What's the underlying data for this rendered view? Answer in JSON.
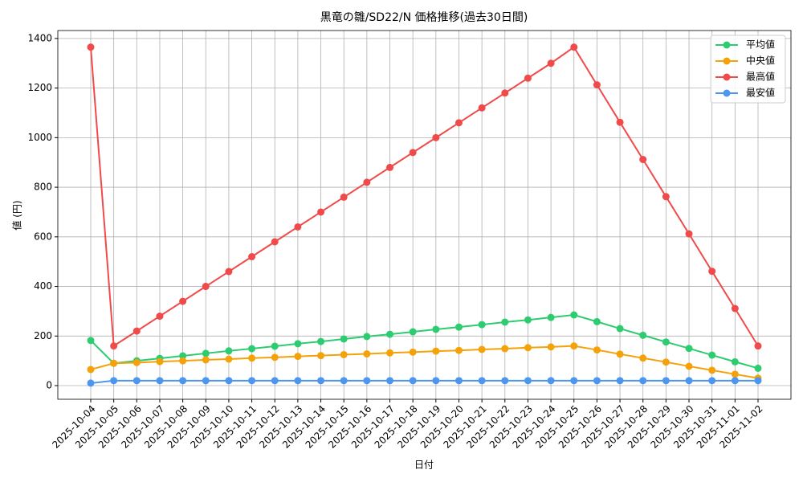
{
  "chart_data": {
    "type": "line",
    "title": "黒竜の雛/SD22/N 価格推移(過去30日間)",
    "xlabel": "日付",
    "ylabel": "値 (円)",
    "categories": [
      "2025-10-04",
      "2025-10-05",
      "2025-10-06",
      "2025-10-07",
      "2025-10-08",
      "2025-10-09",
      "2025-10-10",
      "2025-10-11",
      "2025-10-12",
      "2025-10-13",
      "2025-10-14",
      "2025-10-15",
      "2025-10-16",
      "2025-10-17",
      "2025-10-18",
      "2025-10-19",
      "2025-10-20",
      "2025-10-21",
      "2025-10-22",
      "2025-10-23",
      "2025-10-24",
      "2025-10-25",
      "2025-10-26",
      "2025-10-27",
      "2025-10-28",
      "2025-10-29",
      "2025-10-30",
      "2025-10-31",
      "2025-11-01",
      "2025-11-02"
    ],
    "series": [
      {
        "name": "平均値",
        "color": "#2ecc71",
        "values": [
          182,
          90,
          100,
          110,
          120,
          130,
          140,
          149,
          159,
          169,
          178,
          188,
          198,
          207,
          217,
          227,
          236,
          246,
          256,
          265,
          275,
          285,
          258,
          230,
          203,
          176,
          150,
          123,
          96,
          70
        ]
      },
      {
        "name": "中央値",
        "color": "#f5a20a",
        "values": [
          65,
          90,
          93,
          97,
          100,
          104,
          107,
          111,
          114,
          118,
          121,
          125,
          128,
          132,
          135,
          139,
          142,
          146,
          149,
          153,
          156,
          160,
          144,
          127,
          111,
          95,
          78,
          62,
          46,
          30
        ]
      },
      {
        "name": "最高値",
        "color": "#f04a4a",
        "values": [
          1365,
          160,
          220,
          280,
          340,
          400,
          460,
          520,
          580,
          640,
          700,
          760,
          820,
          880,
          940,
          1000,
          1060,
          1120,
          1180,
          1240,
          1300,
          1365,
          1213,
          1062,
          912,
          762,
          612,
          461,
          311,
          160
        ]
      },
      {
        "name": "最安値",
        "color": "#4d96ef",
        "values": [
          10,
          20,
          20,
          20,
          20,
          20,
          20,
          20,
          20,
          20,
          20,
          20,
          20,
          20,
          20,
          20,
          20,
          20,
          20,
          20,
          20,
          20,
          20,
          20,
          20,
          20,
          20,
          20,
          20,
          20
        ]
      }
    ],
    "ylim": [
      -55,
      1432
    ],
    "yticks": [
      0,
      200,
      400,
      600,
      800,
      1000,
      1200,
      1400
    ],
    "grid": true,
    "legend": "upper right"
  }
}
